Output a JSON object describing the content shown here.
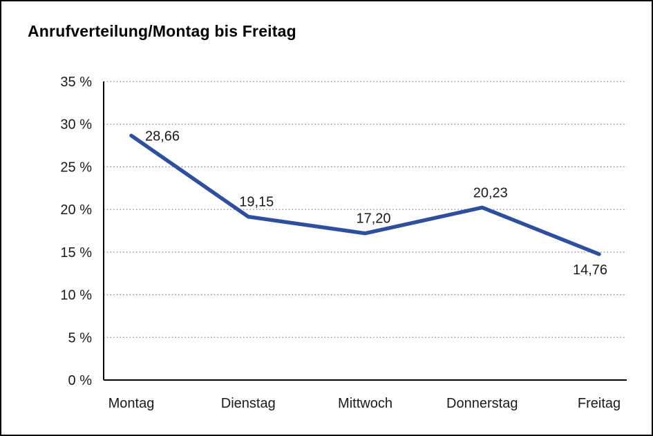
{
  "chart_data": {
    "type": "line",
    "title": "Anrufverteilung/Montag bis Freitag",
    "categories": [
      "Montag",
      "Dienstag",
      "Mittwoch",
      "Donnerstag",
      "Freitag"
    ],
    "values": [
      28.66,
      19.15,
      17.2,
      20.23,
      14.76
    ],
    "value_labels": [
      "28,66",
      "19,15",
      "17,20",
      "20,23",
      "14,76"
    ],
    "label_positions": [
      "right",
      "above",
      "above",
      "above",
      "below"
    ],
    "ylim": [
      0,
      35
    ],
    "ytick_step": 5,
    "ytick_labels": [
      "0 %",
      "5 %",
      "10 %",
      "15 %",
      "20 %",
      "25 %",
      "30 %",
      "35 %"
    ],
    "xlabel": "",
    "ylabel": "",
    "grid": "horizontal-dotted",
    "legend": "none",
    "line_color": "#2e4f9e",
    "axis_color": "#000000",
    "grid_color": "#808080"
  }
}
